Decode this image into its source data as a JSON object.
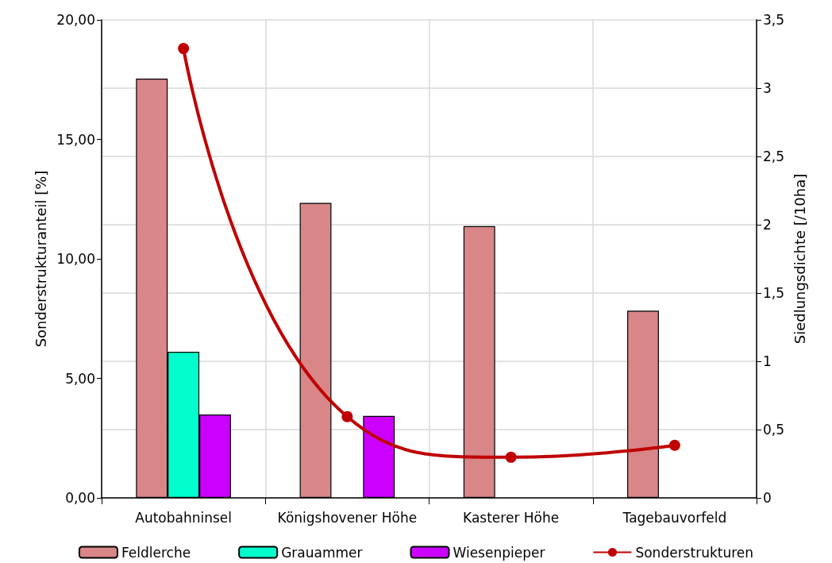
{
  "chart_data": {
    "type": "bar",
    "categories": [
      "Autobahninsel",
      "Königshovener Höhe",
      "Kasterer Höhe",
      "Tagebauvorfeld"
    ],
    "series": [
      {
        "name": "Feldlerche",
        "color": "#d88688",
        "values": [
          3.07,
          2.16,
          1.99,
          1.37
        ],
        "axis": "y2"
      },
      {
        "name": "Grauammer",
        "color": "#00ffcc",
        "values": [
          1.07,
          null,
          null,
          null
        ],
        "axis": "y2"
      },
      {
        "name": "Wiesenpieper",
        "color": "#cc00ff",
        "values": [
          0.61,
          0.6,
          null,
          null
        ],
        "axis": "y2"
      },
      {
        "name": "Sonderstrukturen",
        "color": "#c00000",
        "type": "line",
        "values": [
          18.8,
          3.4,
          1.7,
          2.2
        ]
      }
    ],
    "ylabel": "Sonderstrukturanteil [%]",
    "y2label": "Siedlungsdichte [/10ha]",
    "ylim": [
      0,
      20
    ],
    "yticks": [
      {
        "value": 0,
        "label": "0,00"
      },
      {
        "value": 5,
        "label": "5,00"
      },
      {
        "value": 10,
        "label": "10,00"
      },
      {
        "value": 15,
        "label": "15,00"
      },
      {
        "value": 20,
        "label": "20,00"
      }
    ],
    "y2lim": [
      0,
      3.5
    ],
    "y2ticks": [
      0,
      {
        "value": 0.5,
        "label": "0,5"
      },
      1,
      {
        "value": 1.5,
        "label": "1,5"
      },
      2,
      {
        "value": 2.5,
        "label": "2,5"
      },
      3,
      {
        "value": 3.5,
        "label": "3,5"
      }
    ],
    "grid": true,
    "legend": "bottom",
    "marker": "circle",
    "line_style": "solid"
  }
}
